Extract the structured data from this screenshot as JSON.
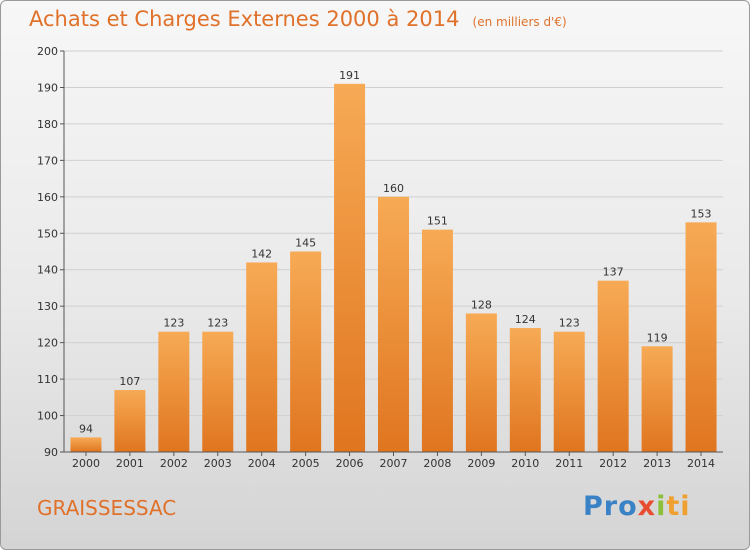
{
  "title": "Achats et Charges Externes 2000 à 2014",
  "unit": "(en milliers d'€)",
  "commune": "GRAISSESSAC",
  "logo": {
    "p1": "Pro",
    "p2": "x",
    "p3": "i",
    "p4": "ti"
  },
  "colors": {
    "bar_light": "#f5a550",
    "bar_dark": "#e0751f",
    "title": "#e0712a"
  },
  "chart_data": {
    "type": "bar",
    "categories": [
      "2000",
      "2001",
      "2002",
      "2003",
      "2004",
      "2005",
      "2006",
      "2007",
      "2008",
      "2009",
      "2010",
      "2011",
      "2012",
      "2013",
      "2014"
    ],
    "values": [
      94,
      107,
      123,
      123,
      142,
      145,
      191,
      160,
      151,
      128,
      124,
      123,
      137,
      119,
      153
    ],
    "ylim": [
      90,
      200
    ],
    "yticks": [
      90,
      100,
      110,
      120,
      130,
      140,
      150,
      160,
      170,
      180,
      190,
      200
    ],
    "grid": true,
    "legend": "none"
  }
}
